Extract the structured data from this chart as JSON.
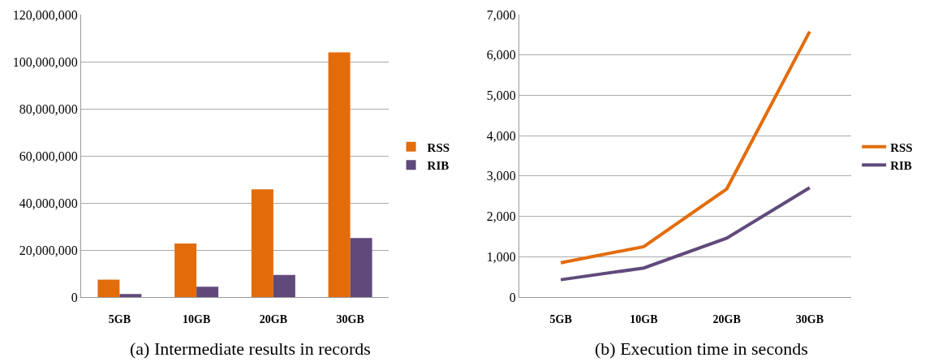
{
  "chart_data": [
    {
      "type": "bar",
      "categories": [
        "5GB",
        "10GB",
        "20GB",
        "30GB"
      ],
      "series": [
        {
          "name": "RSS",
          "color": "#e36c0a",
          "values": [
            7400000,
            22800000,
            45800000,
            104000000
          ]
        },
        {
          "name": "RIB",
          "color": "#604a7b",
          "values": [
            1300000,
            4400000,
            9400000,
            25100000
          ]
        }
      ],
      "ylim": [
        0,
        120000000
      ],
      "yticks": [
        {
          "value": 0,
          "label": "0"
        },
        {
          "value": 20000000,
          "label": "20,000,000"
        },
        {
          "value": 40000000,
          "label": "40,000,000"
        },
        {
          "value": 60000000,
          "label": "60,000,000"
        },
        {
          "value": 80000000,
          "label": "80,000,000"
        },
        {
          "value": 100000000,
          "label": "100,000,000"
        },
        {
          "value": 120000000,
          "label": "120,000,000"
        }
      ],
      "grid": "y",
      "legend": "right",
      "annotations": [
        "(a) Intermediate results in records"
      ]
    },
    {
      "type": "line",
      "categories": [
        "5GB",
        "10GB",
        "20GB",
        "30GB"
      ],
      "series": [
        {
          "name": "RSS",
          "color": "#e36c0a",
          "values": [
            850,
            1250,
            2680,
            6580
          ]
        },
        {
          "name": "RIB",
          "color": "#604a7b",
          "values": [
            430,
            720,
            1460,
            2710
          ]
        }
      ],
      "ylim": [
        0,
        7000
      ],
      "yticks": [
        {
          "value": 0,
          "label": "0"
        },
        {
          "value": 1000,
          "label": "1,000"
        },
        {
          "value": 2000,
          "label": "2,000"
        },
        {
          "value": 3000,
          "label": "3,000"
        },
        {
          "value": 4000,
          "label": "4,000"
        },
        {
          "value": 5000,
          "label": "5,000"
        },
        {
          "value": 6000,
          "label": "6,000"
        },
        {
          "value": 7000,
          "label": "7,000"
        }
      ],
      "grid": "y",
      "legend": "right",
      "marker": "none",
      "line_style": "solid",
      "annotations": [
        "(b) Execution time in seconds"
      ]
    }
  ]
}
